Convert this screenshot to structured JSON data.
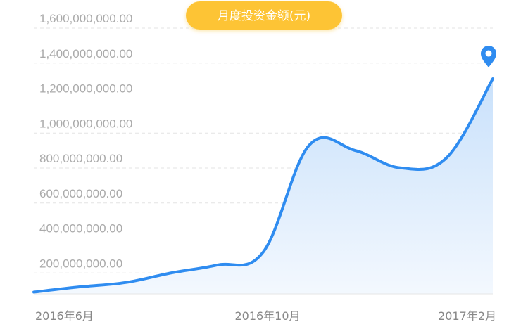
{
  "chart_data": {
    "type": "area",
    "title": "月度投资金额(元)",
    "x": [
      "2016年6月",
      "",
      "",
      "",
      "",
      "2016年10月",
      "",
      "",
      "",
      "",
      "2017年2月"
    ],
    "x_tick_labels": [
      "2016年6月",
      "2016年10月",
      "2017年2月"
    ],
    "y_tick_labels": [
      "200,000,000.00",
      "400,000,000.00",
      "600,000,000.00",
      "800,000,000.00",
      "1,000,000,000.00",
      "1,200,000,000.00",
      "1,400,000,000.00",
      "1,600,000,000.00"
    ],
    "ylim": [
      0,
      1600000000
    ],
    "series": [
      {
        "values": [
          10000000,
          40000000,
          65000000,
          120000000,
          165000000,
          240000000,
          850000000,
          820000000,
          720000000,
          780000000,
          1230000000
        ]
      }
    ],
    "grid": true,
    "marker": "map-pin at last point",
    "colors": {
      "line": "#2f8cf0",
      "fill_top": "#c9e1fb",
      "fill_bottom": "#f3f8fe",
      "title_pill": "#fdc436",
      "marker": "#2f8cf0"
    }
  }
}
